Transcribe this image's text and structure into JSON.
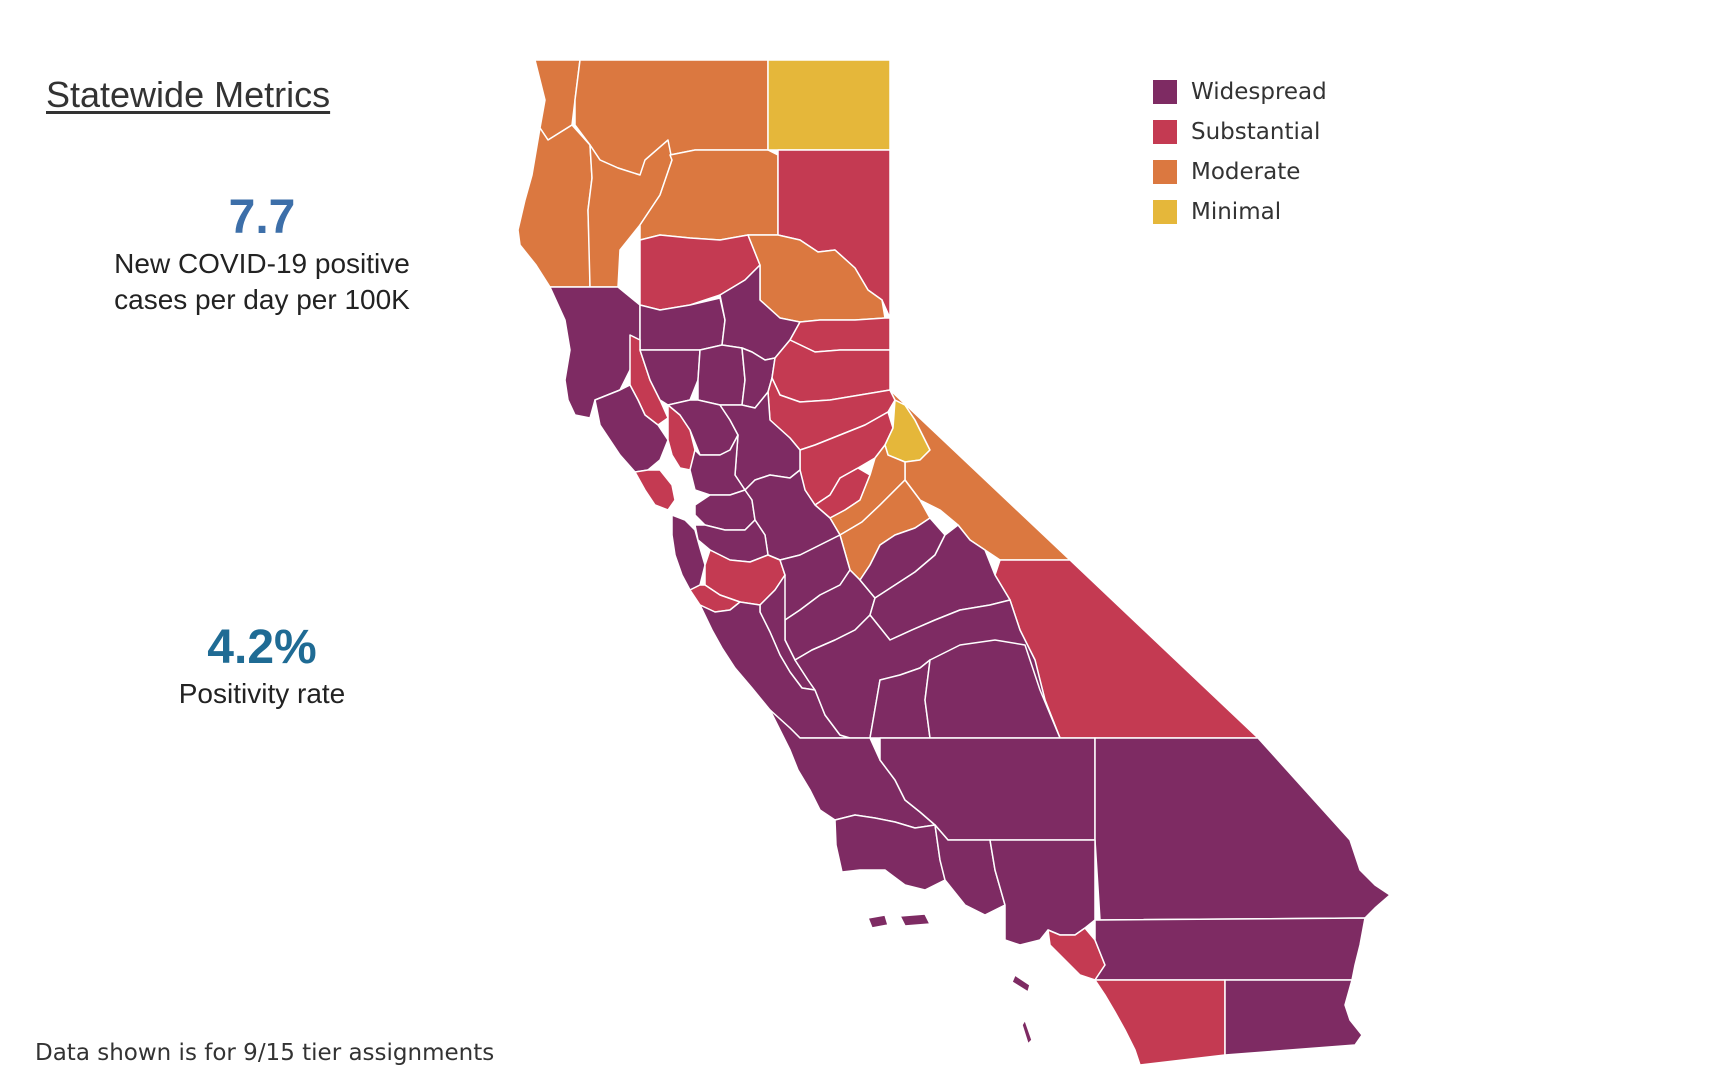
{
  "title": "Statewide Metrics",
  "metrics": {
    "cases": {
      "value": "7.7",
      "label_line1": "New COVID-19 positive",
      "label_line2": "cases per day per 100K"
    },
    "positivity": {
      "value": "4.2%",
      "label": "Positivity rate"
    }
  },
  "legend": {
    "items": [
      {
        "label": "Widespread",
        "color": "#7e2b63"
      },
      {
        "label": "Substantial",
        "color": "#c43a52"
      },
      {
        "label": "Moderate",
        "color": "#db7840"
      },
      {
        "label": "Minimal",
        "color": "#e5b73a"
      }
    ]
  },
  "footnote": "Data shown is for 9/15 tier assignments"
}
